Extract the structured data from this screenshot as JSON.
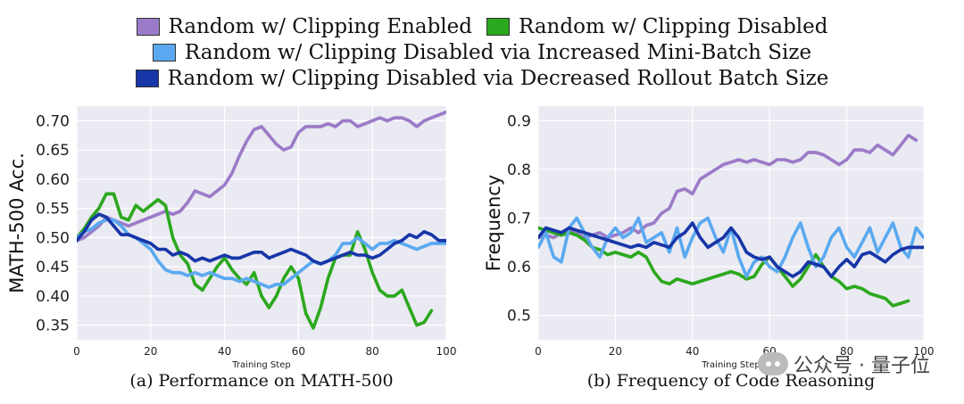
{
  "legend": [
    {
      "label": "Random w/ Clipping Enabled",
      "color": "#9b7bc8"
    },
    {
      "label": "Random w/ Clipping Disabled",
      "color": "#2ca81e"
    },
    {
      "label": "Random w/ Clipping Disabled via Increased Mini-Batch Size",
      "color": "#5aa9f0"
    },
    {
      "label": "Random w/ Clipping Disabled via Decreased Rollout Batch Size",
      "color": "#1736a8"
    }
  ],
  "watermark": {
    "text": "公众号 · 量子位",
    "icon": "wechat-icon"
  },
  "chart_data": [
    {
      "type": "line",
      "caption": "(a) Performance on MATH-500",
      "xlabel": "Training Step",
      "ylabel": "MATH-500 Acc.",
      "xlim": [
        0,
        100
      ],
      "ylim": [
        0.325,
        0.725
      ],
      "xticks": [
        0,
        20,
        40,
        60,
        80,
        100
      ],
      "yticks": [
        0.35,
        0.4,
        0.45,
        0.5,
        0.55,
        0.6,
        0.65,
        0.7
      ],
      "ytick_labels": [
        "0.35",
        "0.40",
        "0.45",
        "0.50",
        "0.55",
        "0.60",
        "0.65",
        "0.70"
      ],
      "grid": true,
      "series": [
        {
          "name": "Random w/ Clipping Enabled",
          "color": "#9b7bc8",
          "x": [
            0,
            2,
            4,
            6,
            8,
            10,
            12,
            14,
            16,
            18,
            20,
            22,
            24,
            26,
            28,
            30,
            32,
            34,
            36,
            38,
            40,
            42,
            44,
            46,
            48,
            50,
            52,
            54,
            56,
            58,
            60,
            62,
            64,
            66,
            68,
            70,
            72,
            74,
            76,
            78,
            80,
            82,
            84,
            86,
            88,
            90,
            92,
            94,
            96,
            98,
            100
          ],
          "y": [
            0.495,
            0.5,
            0.51,
            0.52,
            0.535,
            0.53,
            0.525,
            0.52,
            0.525,
            0.53,
            0.535,
            0.54,
            0.545,
            0.54,
            0.545,
            0.56,
            0.58,
            0.575,
            0.57,
            0.58,
            0.59,
            0.61,
            0.64,
            0.665,
            0.685,
            0.69,
            0.675,
            0.66,
            0.65,
            0.655,
            0.68,
            0.69,
            0.69,
            0.69,
            0.695,
            0.69,
            0.7,
            0.7,
            0.69,
            0.695,
            0.7,
            0.705,
            0.7,
            0.705,
            0.705,
            0.7,
            0.69,
            0.7,
            0.705,
            0.71,
            0.715
          ]
        },
        {
          "name": "Random w/ Clipping Disabled",
          "color": "#2ca81e",
          "x": [
            0,
            2,
            4,
            6,
            8,
            10,
            12,
            14,
            16,
            18,
            20,
            22,
            24,
            26,
            28,
            30,
            32,
            34,
            36,
            38,
            40,
            42,
            44,
            46,
            48,
            50,
            52,
            54,
            56,
            58,
            60,
            62,
            64,
            66,
            68,
            70,
            72,
            74,
            76,
            78,
            80,
            82,
            84,
            86,
            88,
            90,
            92,
            94,
            96
          ],
          "y": [
            0.5,
            0.515,
            0.535,
            0.55,
            0.575,
            0.575,
            0.535,
            0.53,
            0.555,
            0.545,
            0.555,
            0.565,
            0.555,
            0.5,
            0.47,
            0.455,
            0.42,
            0.41,
            0.43,
            0.45,
            0.465,
            0.445,
            0.43,
            0.42,
            0.44,
            0.4,
            0.38,
            0.4,
            0.43,
            0.45,
            0.43,
            0.37,
            0.345,
            0.38,
            0.43,
            0.465,
            0.47,
            0.47,
            0.51,
            0.48,
            0.44,
            0.41,
            0.4,
            0.4,
            0.41,
            0.38,
            0.35,
            0.355,
            0.375
          ]
        },
        {
          "name": "Random w/ Clipping Disabled via Increased Mini-Batch Size",
          "color": "#5aa9f0",
          "x": [
            0,
            2,
            4,
            6,
            8,
            10,
            12,
            14,
            16,
            18,
            20,
            22,
            24,
            26,
            28,
            30,
            32,
            34,
            36,
            38,
            40,
            42,
            44,
            46,
            48,
            50,
            52,
            54,
            56,
            58,
            60,
            62,
            64,
            66,
            68,
            70,
            72,
            74,
            76,
            78,
            80,
            82,
            84,
            86,
            88,
            90,
            92,
            94,
            96,
            98,
            100
          ],
          "y": [
            0.5,
            0.51,
            0.515,
            0.525,
            0.53,
            0.53,
            0.52,
            0.505,
            0.5,
            0.49,
            0.48,
            0.46,
            0.445,
            0.44,
            0.44,
            0.435,
            0.44,
            0.435,
            0.44,
            0.435,
            0.43,
            0.43,
            0.425,
            0.43,
            0.425,
            0.42,
            0.415,
            0.42,
            0.42,
            0.43,
            0.44,
            0.45,
            0.46,
            0.455,
            0.46,
            0.47,
            0.49,
            0.49,
            0.5,
            0.49,
            0.48,
            0.49,
            0.49,
            0.495,
            0.49,
            0.485,
            0.48,
            0.485,
            0.49,
            0.49,
            0.49
          ]
        },
        {
          "name": "Random w/ Clipping Disabled via Decreased Rollout Batch Size",
          "color": "#1736a8",
          "x": [
            0,
            2,
            4,
            6,
            8,
            10,
            12,
            14,
            16,
            18,
            20,
            22,
            24,
            26,
            28,
            30,
            32,
            34,
            36,
            38,
            40,
            42,
            44,
            46,
            48,
            50,
            52,
            54,
            56,
            58,
            60,
            62,
            64,
            66,
            68,
            70,
            72,
            74,
            76,
            78,
            80,
            82,
            84,
            86,
            88,
            90,
            92,
            94,
            96,
            98,
            100
          ],
          "y": [
            0.495,
            0.51,
            0.53,
            0.54,
            0.535,
            0.52,
            0.505,
            0.505,
            0.5,
            0.495,
            0.49,
            0.48,
            0.48,
            0.47,
            0.475,
            0.47,
            0.46,
            0.465,
            0.46,
            0.465,
            0.47,
            0.465,
            0.465,
            0.47,
            0.475,
            0.475,
            0.465,
            0.47,
            0.475,
            0.48,
            0.475,
            0.47,
            0.46,
            0.455,
            0.46,
            0.465,
            0.47,
            0.475,
            0.47,
            0.47,
            0.465,
            0.47,
            0.48,
            0.49,
            0.495,
            0.505,
            0.5,
            0.51,
            0.505,
            0.495,
            0.495
          ]
        }
      ]
    },
    {
      "type": "line",
      "caption": "(b) Frequency of Code Reasoning",
      "xlabel": "Training Step",
      "ylabel": "Frequency",
      "xlim": [
        0,
        100
      ],
      "ylim": [
        0.45,
        0.93
      ],
      "xticks": [
        0,
        20,
        40,
        60,
        80,
        100
      ],
      "yticks": [
        0.5,
        0.6,
        0.7,
        0.8,
        0.9
      ],
      "ytick_labels": [
        "0.5",
        "0.6",
        "0.7",
        "0.8",
        "0.9"
      ],
      "grid": true,
      "series": [
        {
          "name": "Random w/ Clipping Enabled",
          "color": "#9b7bc8",
          "x": [
            0,
            2,
            4,
            6,
            8,
            10,
            12,
            14,
            16,
            18,
            20,
            22,
            24,
            26,
            28,
            30,
            32,
            34,
            36,
            38,
            40,
            42,
            44,
            46,
            48,
            50,
            52,
            54,
            56,
            58,
            60,
            62,
            64,
            66,
            68,
            70,
            72,
            74,
            76,
            78,
            80,
            82,
            84,
            86,
            88,
            90,
            92,
            94,
            96,
            98
          ],
          "y": [
            0.66,
            0.665,
            0.66,
            0.67,
            0.675,
            0.67,
            0.66,
            0.665,
            0.67,
            0.66,
            0.665,
            0.67,
            0.68,
            0.67,
            0.685,
            0.69,
            0.71,
            0.72,
            0.755,
            0.76,
            0.75,
            0.78,
            0.79,
            0.8,
            0.81,
            0.815,
            0.82,
            0.815,
            0.82,
            0.815,
            0.81,
            0.82,
            0.82,
            0.815,
            0.82,
            0.835,
            0.835,
            0.83,
            0.82,
            0.81,
            0.82,
            0.84,
            0.84,
            0.835,
            0.85,
            0.84,
            0.83,
            0.85,
            0.87,
            0.86
          ]
        },
        {
          "name": "Random w/ Clipping Disabled",
          "color": "#2ca81e",
          "x": [
            0,
            2,
            4,
            6,
            8,
            10,
            12,
            14,
            16,
            18,
            20,
            22,
            24,
            26,
            28,
            30,
            32,
            34,
            36,
            38,
            40,
            42,
            44,
            46,
            48,
            50,
            52,
            54,
            56,
            58,
            60,
            62,
            64,
            66,
            68,
            70,
            72,
            74,
            76,
            78,
            80,
            82,
            84,
            86,
            88,
            90,
            92,
            94,
            96
          ],
          "y": [
            0.68,
            0.675,
            0.67,
            0.665,
            0.67,
            0.665,
            0.655,
            0.64,
            0.635,
            0.625,
            0.63,
            0.625,
            0.62,
            0.63,
            0.62,
            0.59,
            0.57,
            0.565,
            0.575,
            0.57,
            0.565,
            0.57,
            0.575,
            0.58,
            0.585,
            0.59,
            0.585,
            0.575,
            0.58,
            0.605,
            0.62,
            0.6,
            0.58,
            0.56,
            0.575,
            0.6,
            0.625,
            0.6,
            0.58,
            0.57,
            0.555,
            0.56,
            0.555,
            0.545,
            0.54,
            0.535,
            0.52,
            0.525,
            0.53
          ]
        },
        {
          "name": "Random w/ Clipping Disabled via Increased Mini-Batch Size",
          "color": "#5aa9f0",
          "x": [
            0,
            2,
            4,
            6,
            8,
            10,
            12,
            14,
            16,
            18,
            20,
            22,
            24,
            26,
            28,
            30,
            32,
            34,
            36,
            38,
            40,
            42,
            44,
            46,
            48,
            50,
            52,
            54,
            56,
            58,
            60,
            62,
            64,
            66,
            68,
            70,
            72,
            74,
            76,
            78,
            80,
            82,
            84,
            86,
            88,
            90,
            92,
            94,
            96,
            98,
            100
          ],
          "y": [
            0.64,
            0.67,
            0.62,
            0.61,
            0.68,
            0.7,
            0.67,
            0.64,
            0.62,
            0.66,
            0.68,
            0.66,
            0.67,
            0.7,
            0.65,
            0.66,
            0.67,
            0.63,
            0.68,
            0.62,
            0.66,
            0.69,
            0.7,
            0.66,
            0.63,
            0.68,
            0.62,
            0.58,
            0.61,
            0.62,
            0.6,
            0.59,
            0.62,
            0.66,
            0.69,
            0.64,
            0.6,
            0.62,
            0.66,
            0.68,
            0.64,
            0.62,
            0.65,
            0.68,
            0.63,
            0.66,
            0.69,
            0.64,
            0.62,
            0.68,
            0.66
          ]
        },
        {
          "name": "Random w/ Clipping Disabled via Decreased Rollout Batch Size",
          "color": "#1736a8",
          "x": [
            0,
            2,
            4,
            6,
            8,
            10,
            12,
            14,
            16,
            18,
            20,
            22,
            24,
            26,
            28,
            30,
            32,
            34,
            36,
            38,
            40,
            42,
            44,
            46,
            48,
            50,
            52,
            54,
            56,
            58,
            60,
            62,
            64,
            66,
            68,
            70,
            72,
            74,
            76,
            78,
            80,
            82,
            84,
            86,
            88,
            90,
            92,
            94,
            96,
            98,
            100
          ],
          "y": [
            0.66,
            0.68,
            0.675,
            0.67,
            0.68,
            0.675,
            0.67,
            0.665,
            0.66,
            0.655,
            0.65,
            0.645,
            0.64,
            0.645,
            0.64,
            0.65,
            0.645,
            0.64,
            0.66,
            0.67,
            0.69,
            0.66,
            0.64,
            0.65,
            0.66,
            0.68,
            0.66,
            0.63,
            0.62,
            0.615,
            0.62,
            0.6,
            0.59,
            0.58,
            0.59,
            0.61,
            0.605,
            0.6,
            0.58,
            0.6,
            0.615,
            0.6,
            0.625,
            0.63,
            0.62,
            0.61,
            0.625,
            0.635,
            0.64,
            0.64,
            0.64
          ]
        }
      ]
    }
  ]
}
